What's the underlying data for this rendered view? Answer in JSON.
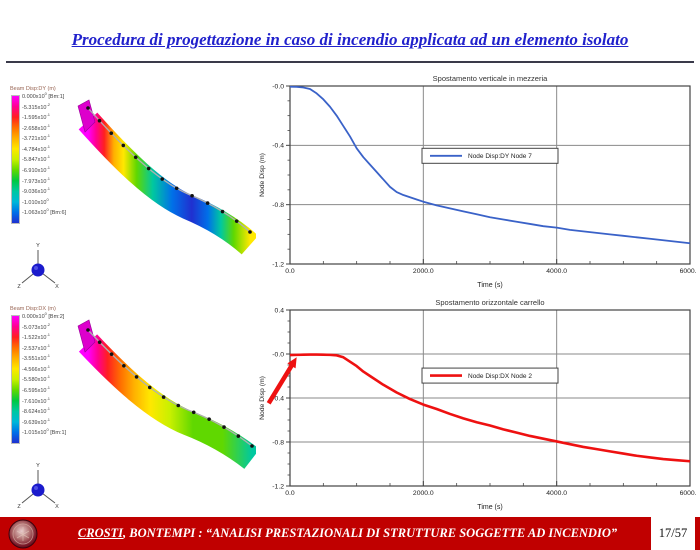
{
  "slide": {
    "title": "Procedura di progettazione in caso di incendio applicata ad un elemento isolato"
  },
  "footer": {
    "author_underlined": "CROSTI",
    "text_rest": ", BONTEMPI : “ANALISI PRESTAZIONALI DI STRUTTURE SOGGETTE AD INCENDIO”",
    "page": "17/57",
    "bar_color": "#c00000"
  },
  "color_scale": [
    "#ff00ff",
    "#ff0090",
    "#ff2020",
    "#ff7000",
    "#ffb000",
    "#ffe800",
    "#c8f000",
    "#60d800",
    "#00c840",
    "#00c8a0",
    "#00b8d8",
    "#0070e8",
    "#2030d0"
  ],
  "fem_panels": [
    {
      "legend_header": "Beam Disp:DY (m)",
      "legend_entries": [
        [
          "0.000x10",
          "0",
          " [Bm:1]"
        ],
        [
          "-5.315x10",
          "-2",
          ""
        ],
        [
          "-1.595x10",
          "-1",
          ""
        ],
        [
          "-2.658x10",
          "-1",
          ""
        ],
        [
          "-3.721x10",
          "-1",
          ""
        ],
        [
          "-4.784x10",
          "-1",
          ""
        ],
        [
          "-5.847x10",
          "-1",
          ""
        ],
        [
          "-6.910x10",
          "-1",
          ""
        ],
        [
          "-7.973x10",
          "-1",
          ""
        ],
        [
          "-9.036x10",
          "-1",
          ""
        ],
        [
          "-1.010x10",
          "0",
          ""
        ],
        [
          "-1.063x10",
          "0",
          " [Bm:6]"
        ]
      ],
      "triad": {
        "up": "Y",
        "lower_left": "Z",
        "lower_right": "X"
      }
    },
    {
      "legend_header": "Beam Disp:DX (m)",
      "legend_entries": [
        [
          "0.000x10",
          "0",
          " [Bm:2]"
        ],
        [
          "-5.073x10",
          "-2",
          ""
        ],
        [
          "-1.522x10",
          "-1",
          ""
        ],
        [
          "-2.537x10",
          "-1",
          ""
        ],
        [
          "-3.551x10",
          "-1",
          ""
        ],
        [
          "-4.566x10",
          "-1",
          ""
        ],
        [
          "-5.580x10",
          "-1",
          ""
        ],
        [
          "-6.595x10",
          "-1",
          ""
        ],
        [
          "-7.610x10",
          "-1",
          ""
        ],
        [
          "-8.624x10",
          "-1",
          ""
        ],
        [
          "-9.639x10",
          "-1",
          ""
        ],
        [
          "-1.015x10",
          "0",
          " [Bm:1]"
        ]
      ],
      "triad": {
        "up": "Y",
        "lower_left": "Z",
        "lower_right": "X"
      }
    }
  ],
  "chart_data": [
    {
      "type": "line",
      "title": "Spostamento verticale in mezzeria",
      "xlabel": "Time (s)",
      "ylabel": "Node Disp  (m)",
      "xlim": [
        0,
        6000
      ],
      "ylim": [
        -1.2,
        0.0
      ],
      "xticks": [
        0,
        2000,
        4000,
        6000
      ],
      "xtick_labels": [
        "0.0",
        "2000.0",
        "4000.0",
        "6000.0"
      ],
      "yticks": [
        0.0,
        -0.4,
        -0.8,
        -1.2
      ],
      "ytick_labels": [
        "-0.0",
        "-0.4",
        "-0.8",
        "-1.2"
      ],
      "x_minor_step": 500,
      "y_minor_step": 0.1,
      "grid": true,
      "legend_position": "center",
      "line_color": "#3a62c8",
      "line_width": 1.8,
      "series": [
        {
          "name": "Node Disp:DY  Node 7",
          "x": [
            0,
            100,
            200,
            300,
            400,
            500,
            600,
            700,
            800,
            900,
            1000,
            1100,
            1200,
            1300,
            1400,
            1500,
            1600,
            1700,
            1800,
            1900,
            2000,
            2200,
            2400,
            2600,
            2800,
            3000,
            3200,
            3400,
            3600,
            3800,
            4000,
            4200,
            4400,
            4600,
            4800,
            5000,
            5200,
            5400,
            5600,
            5800,
            6000
          ],
          "y": [
            -0.005,
            -0.006,
            -0.01,
            -0.02,
            -0.05,
            -0.09,
            -0.14,
            -0.2,
            -0.27,
            -0.34,
            -0.42,
            -0.48,
            -0.53,
            -0.58,
            -0.63,
            -0.68,
            -0.715,
            -0.735,
            -0.75,
            -0.765,
            -0.78,
            -0.805,
            -0.825,
            -0.845,
            -0.865,
            -0.885,
            -0.9,
            -0.915,
            -0.93,
            -0.945,
            -0.955,
            -0.97,
            -0.98,
            -0.99,
            -1.0,
            -1.01,
            -1.02,
            -1.03,
            -1.04,
            -1.05,
            -1.06
          ]
        }
      ]
    },
    {
      "type": "line",
      "title": "Spostamento orizzontale carrello",
      "xlabel": "Time (s)",
      "ylabel": "Node Disp  (m)",
      "xlim": [
        0,
        6000
      ],
      "ylim": [
        -1.2,
        0.4
      ],
      "xticks": [
        0,
        2000,
        4000,
        6000
      ],
      "xtick_labels": [
        "0.0",
        "2000.0",
        "4000.0",
        "6000.0"
      ],
      "yticks": [
        0.4,
        0.0,
        -0.4,
        -0.8,
        -1.2
      ],
      "ytick_labels": [
        "0.4",
        "-0.0",
        "-0.4",
        "-0.8",
        "-1.2"
      ],
      "x_minor_step": 500,
      "y_minor_step": 0.1,
      "grid": true,
      "legend_position": "center",
      "line_color": "#ee1111",
      "line_width": 2.6,
      "annotation_arrow": {
        "tip_x": 100,
        "tip_y": -0.03,
        "color": "#ee1111"
      },
      "series": [
        {
          "name": "Node Disp:DX  Node 2",
          "x": [
            0,
            100,
            200,
            300,
            400,
            500,
            600,
            700,
            800,
            900,
            1000,
            1100,
            1200,
            1400,
            1600,
            1800,
            2000,
            2200,
            2400,
            2600,
            2800,
            3000,
            3200,
            3400,
            3600,
            3800,
            4000,
            4200,
            4400,
            4600,
            4800,
            5000,
            5200,
            5400,
            5600,
            5800,
            6000
          ],
          "y": [
            -0.01,
            -0.008,
            -0.006,
            -0.005,
            -0.005,
            -0.006,
            -0.008,
            -0.012,
            -0.03,
            -0.07,
            -0.11,
            -0.16,
            -0.2,
            -0.28,
            -0.35,
            -0.41,
            -0.46,
            -0.5,
            -0.545,
            -0.585,
            -0.62,
            -0.65,
            -0.685,
            -0.715,
            -0.745,
            -0.77,
            -0.795,
            -0.82,
            -0.845,
            -0.865,
            -0.885,
            -0.905,
            -0.925,
            -0.94,
            -0.955,
            -0.965,
            -0.975
          ]
        }
      ]
    }
  ]
}
